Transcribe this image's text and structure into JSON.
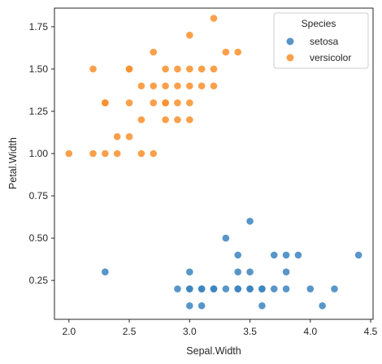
{
  "chart_data": {
    "type": "scatter",
    "xlabel": "Sepal.Width",
    "ylabel": "Petal.Width",
    "xlim": [
      1.88,
      4.52
    ],
    "ylim": [
      0.02,
      1.86
    ],
    "x_ticks": [
      "2.0",
      "2.5",
      "3.0",
      "3.5",
      "4.0",
      "4.5"
    ],
    "y_ticks": [
      "0.25",
      "0.50",
      "0.75",
      "1.00",
      "1.25",
      "1.50",
      "1.75"
    ],
    "grid": false,
    "legend_position": "top-right",
    "legend_title": "Species",
    "series": [
      {
        "name": "setosa",
        "color": "#3b84c0",
        "points": [
          [
            2.3,
            0.3
          ],
          [
            2.9,
            0.2
          ],
          [
            3.0,
            0.1
          ],
          [
            3.0,
            0.2
          ],
          [
            3.0,
            0.3
          ],
          [
            3.1,
            0.1
          ],
          [
            3.1,
            0.2
          ],
          [
            3.2,
            0.2
          ],
          [
            3.3,
            0.2
          ],
          [
            3.4,
            0.2
          ],
          [
            3.4,
            0.3
          ],
          [
            3.4,
            0.4
          ],
          [
            3.5,
            0.2
          ],
          [
            3.5,
            0.3
          ],
          [
            3.5,
            0.6
          ],
          [
            3.6,
            0.2
          ],
          [
            3.6,
            0.1
          ],
          [
            3.7,
            0.2
          ],
          [
            3.7,
            0.4
          ],
          [
            3.8,
            0.2
          ],
          [
            3.8,
            0.3
          ],
          [
            3.8,
            0.4
          ],
          [
            3.9,
            0.4
          ],
          [
            4.0,
            0.2
          ],
          [
            4.1,
            0.1
          ],
          [
            4.2,
            0.2
          ],
          [
            4.4,
            0.4
          ],
          [
            3.3,
            0.5
          ],
          [
            3.2,
            0.2
          ],
          [
            3.0,
            0.2
          ],
          [
            3.1,
            0.2
          ],
          [
            3.4,
            0.2
          ],
          [
            3.5,
            0.2
          ],
          [
            3.6,
            0.2
          ]
        ]
      },
      {
        "name": "versicolor",
        "color": "#f98f2c",
        "points": [
          [
            2.0,
            1.0
          ],
          [
            2.2,
            1.0
          ],
          [
            2.2,
            1.5
          ],
          [
            2.3,
            1.0
          ],
          [
            2.3,
            1.3
          ],
          [
            2.4,
            1.0
          ],
          [
            2.4,
            1.1
          ],
          [
            2.5,
            1.1
          ],
          [
            2.5,
            1.3
          ],
          [
            2.5,
            1.5
          ],
          [
            2.6,
            1.2
          ],
          [
            2.6,
            1.4
          ],
          [
            2.7,
            1.0
          ],
          [
            2.7,
            1.3
          ],
          [
            2.7,
            1.4
          ],
          [
            2.7,
            1.6
          ],
          [
            2.8,
            1.2
          ],
          [
            2.8,
            1.3
          ],
          [
            2.8,
            1.4
          ],
          [
            2.8,
            1.5
          ],
          [
            2.9,
            1.3
          ],
          [
            2.9,
            1.4
          ],
          [
            2.9,
            1.5
          ],
          [
            3.0,
            1.2
          ],
          [
            3.0,
            1.4
          ],
          [
            3.0,
            1.5
          ],
          [
            3.0,
            1.7
          ],
          [
            3.1,
            1.4
          ],
          [
            3.1,
            1.5
          ],
          [
            3.2,
            1.4
          ],
          [
            3.2,
            1.5
          ],
          [
            3.2,
            1.8
          ],
          [
            3.3,
            1.6
          ],
          [
            3.4,
            1.6
          ],
          [
            2.6,
            1.0
          ],
          [
            2.9,
            1.2
          ],
          [
            2.3,
            1.3
          ],
          [
            2.5,
            1.5
          ],
          [
            3.0,
            1.3
          ],
          [
            2.8,
            1.3
          ]
        ]
      }
    ]
  }
}
